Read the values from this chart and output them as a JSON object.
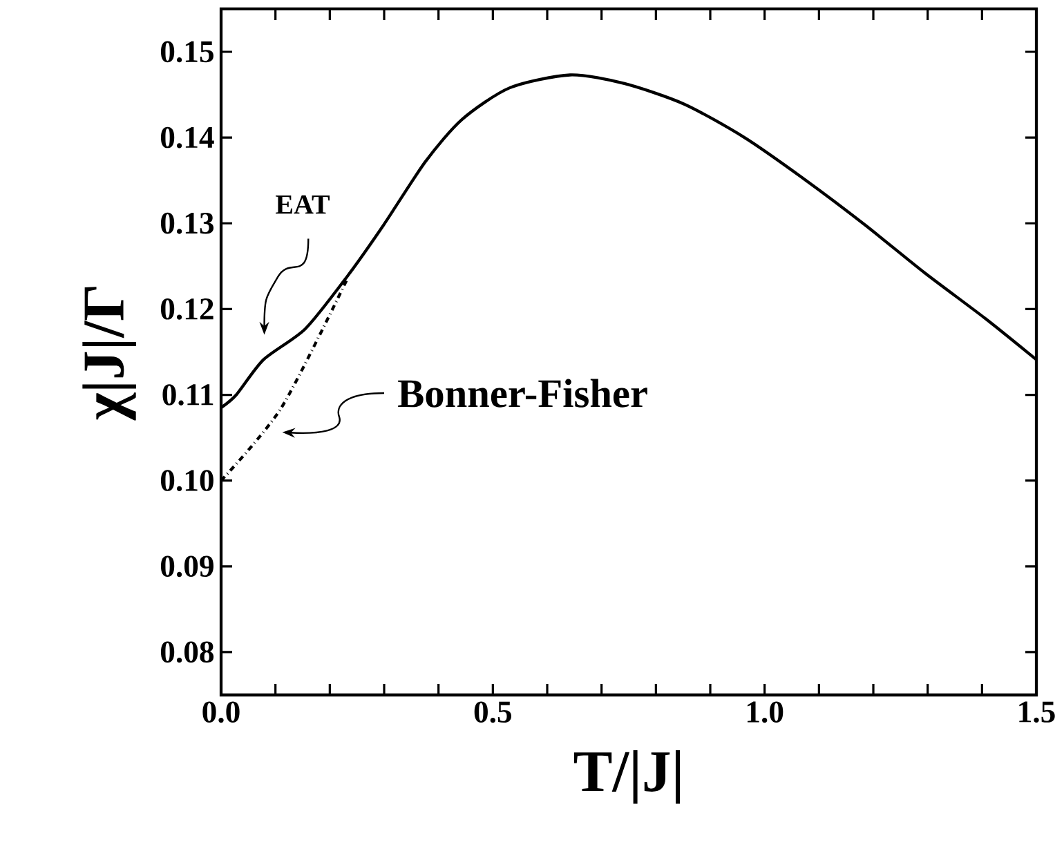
{
  "chart_data": {
    "type": "line",
    "xlabel": "T/|J|",
    "ylabel": "χ|J|/Γ",
    "xlim": [
      0,
      1.5
    ],
    "ylim": [
      0.075,
      0.155
    ],
    "xticks": [
      {
        "value": 0,
        "label": "0.0"
      },
      {
        "value": 0.1,
        "label": null
      },
      {
        "value": 0.2,
        "label": null
      },
      {
        "value": 0.3,
        "label": null
      },
      {
        "value": 0.4,
        "label": null
      },
      {
        "value": 0.5,
        "label": "0.5"
      },
      {
        "value": 0.6,
        "label": null
      },
      {
        "value": 0.7,
        "label": null
      },
      {
        "value": 0.8,
        "label": null
      },
      {
        "value": 0.9,
        "label": null
      },
      {
        "value": 1.0,
        "label": "1.0"
      },
      {
        "value": 1.1,
        "label": null
      },
      {
        "value": 1.2,
        "label": null
      },
      {
        "value": 1.3,
        "label": null
      },
      {
        "value": 1.4,
        "label": null
      },
      {
        "value": 1.5,
        "label": "1.5"
      }
    ],
    "yticks": [
      0.08,
      0.09,
      {
        "value": 0.1,
        "label": "0.10"
      },
      0.11,
      0.12,
      0.13,
      0.14,
      0.15
    ],
    "series": [
      {
        "color": "#000000",
        "line_style": "solid",
        "x": [
          0,
          0.028,
          0.078,
          0.155,
          0.232,
          0.299,
          0.376,
          0.443,
          0.531,
          0.642,
          0.742,
          0.852,
          0.963,
          1.074,
          1.185,
          1.295,
          1.406,
          1.5
        ],
        "values": [
          0.1085,
          0.11,
          0.1141,
          0.1177,
          0.1238,
          0.1298,
          0.1372,
          0.1421,
          0.1458,
          0.1473,
          0.1463,
          0.1439,
          0.14,
          0.1351,
          0.1298,
          0.1242,
          0.1189,
          0.1141
        ]
      },
      {
        "color": "#000000",
        "line_style": "dashdot",
        "x": [
          0,
          0.111,
          0.232
        ],
        "values": [
          0.1,
          0.1085,
          0.1235
        ]
      }
    ],
    "annotations": [
      "EAT",
      "Bonner-Fisher"
    ],
    "grid": false,
    "marker": "none"
  }
}
